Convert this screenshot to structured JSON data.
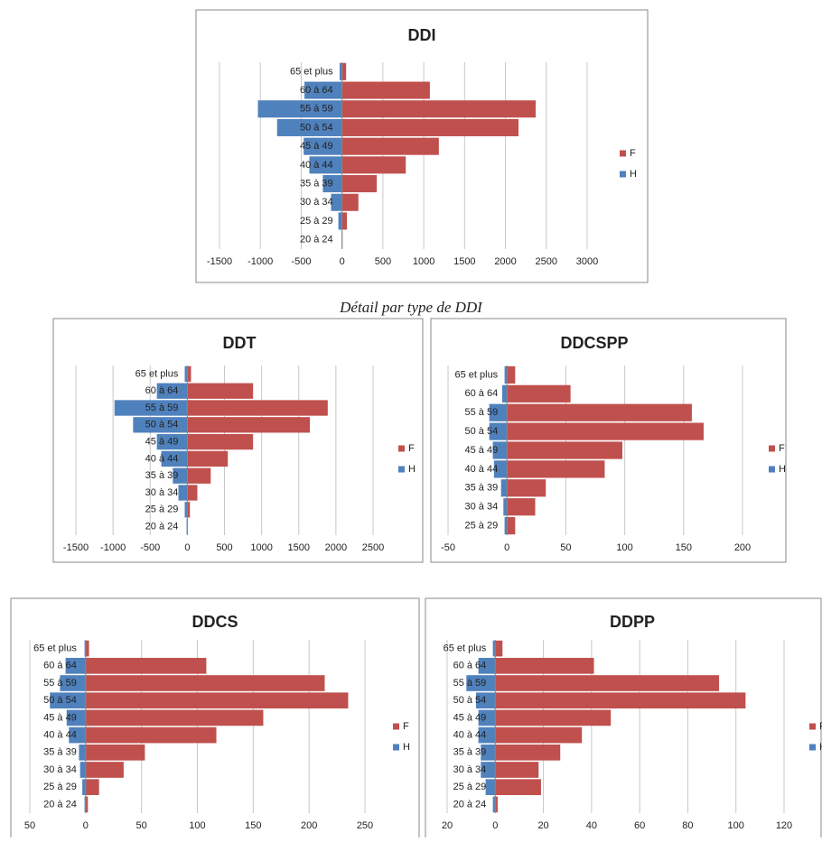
{
  "caption": "Détail par type de DDI",
  "chart_data": [
    {
      "type": "bar",
      "horizontal": true,
      "title": "DDI",
      "categories": [
        "65 et plus",
        "60 à 64",
        "55 à 59",
        "50 à 54",
        "45 à 49",
        "40 à 44",
        "35 à 39",
        "30 à 34",
        "25 à 29",
        "20 à 24"
      ],
      "series": [
        {
          "name": "F",
          "color": "#c0504d",
          "values": [
            50,
            1075,
            2370,
            2160,
            1185,
            780,
            425,
            200,
            60,
            5
          ]
        },
        {
          "name": "H",
          "color": "#4f81bd",
          "values": [
            -30,
            -460,
            -1030,
            -795,
            -470,
            -400,
            -235,
            -135,
            -45,
            -5
          ]
        }
      ],
      "xlim": [
        -1500,
        3000
      ],
      "xticks": [
        -1500,
        -1000,
        -500,
        0,
        500,
        1000,
        1500,
        2000,
        2500,
        3000
      ],
      "grid": true,
      "legend": "right"
    },
    {
      "type": "bar",
      "horizontal": true,
      "title": "DDT",
      "categories": [
        "65 et plus",
        "60 à 64",
        "55 à 59",
        "50 à 54",
        "45 à 49",
        "40 à 44",
        "35 à 39",
        "30 à 34",
        "25 à 29",
        "20 à 24"
      ],
      "series": [
        {
          "name": "F",
          "color": "#c0504d",
          "values": [
            50,
            885,
            1890,
            1650,
            885,
            545,
            315,
            135,
            35,
            5
          ]
        },
        {
          "name": "H",
          "color": "#4f81bd",
          "values": [
            -35,
            -410,
            -980,
            -730,
            -410,
            -350,
            -195,
            -120,
            -35,
            -10
          ]
        }
      ],
      "xlim": [
        -1500,
        2500
      ],
      "xticks": [
        -1500,
        -1000,
        -500,
        0,
        500,
        1000,
        1500,
        2000,
        2500
      ],
      "grid": true,
      "legend": "right"
    },
    {
      "type": "bar",
      "horizontal": true,
      "title": "DDCSPP",
      "categories": [
        "65 et plus",
        "60 à 64",
        "55 à 59",
        "50 à 54",
        "45 à 49",
        "40 à 44",
        "35 à 39",
        "30 à 34",
        "25 à 29"
      ],
      "series": [
        {
          "name": "F",
          "color": "#c0504d",
          "values": [
            7,
            54,
            157,
            167,
            98,
            83,
            33,
            24,
            7
          ]
        },
        {
          "name": "H",
          "color": "#4f81bd",
          "values": [
            -2,
            -4,
            -15,
            -15,
            -12,
            -11,
            -5,
            -3,
            -2
          ]
        }
      ],
      "xlim": [
        -50,
        200
      ],
      "xticks": [
        -50,
        0,
        50,
        100,
        150,
        200
      ],
      "grid": true,
      "legend": "right"
    },
    {
      "type": "bar",
      "horizontal": true,
      "title": "DDCS",
      "categories": [
        "65 et plus",
        "60 à 64",
        "55 à 59",
        "50 à 54",
        "45 à 49",
        "40 à 44",
        "35 à 39",
        "30 à 34",
        "25 à 29",
        "20 à 24"
      ],
      "series": [
        {
          "name": "F",
          "color": "#c0504d",
          "values": [
            3,
            108,
            214,
            235,
            159,
            117,
            53,
            34,
            12,
            2
          ]
        },
        {
          "name": "H",
          "color": "#4f81bd",
          "values": [
            -1,
            -18,
            -23,
            -32,
            -17,
            -15,
            -6,
            -5,
            -3,
            -1
          ]
        }
      ],
      "xlim": [
        -50,
        250
      ],
      "xticks": [
        {
          "value": -50,
          "label": "50"
        },
        0,
        50,
        100,
        150,
        200,
        250
      ],
      "grid": true,
      "legend": "right"
    },
    {
      "type": "bar",
      "horizontal": true,
      "title": "DDPP",
      "categories": [
        "65 et plus",
        "60 à 64",
        "55 à 59",
        "50 à 54",
        "45 à 49",
        "40 à 44",
        "35 à 39",
        "30 à 34",
        "25 à 29",
        "20 à 24"
      ],
      "series": [
        {
          "name": "F",
          "color": "#c0504d",
          "values": [
            3,
            41,
            93,
            104,
            48,
            36,
            27,
            18,
            19,
            1
          ]
        },
        {
          "name": "H",
          "color": "#4f81bd",
          "values": [
            -1,
            -7,
            -12,
            -8,
            -7,
            -7,
            -6,
            -6,
            -4,
            -1
          ]
        }
      ],
      "xlim": [
        -20,
        120
      ],
      "xticks": [
        {
          "value": -20,
          "label": "20"
        },
        0,
        20,
        40,
        60,
        80,
        100,
        120
      ],
      "grid": true,
      "legend": "right"
    }
  ]
}
